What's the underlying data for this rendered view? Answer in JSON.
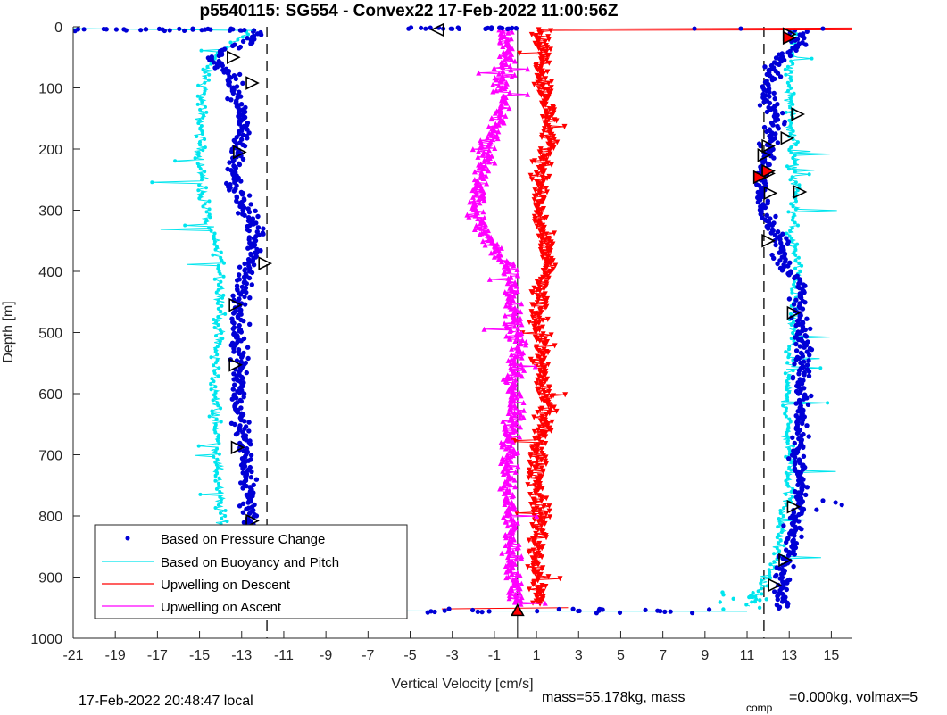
{
  "chart_data": {
    "type": "scatter",
    "title": "p5540115: SG554 - Convex22 17-Feb-2022 11:00:56Z",
    "xlabel": "Vertical Velocity [cm/s]",
    "ylabel": "Depth [m]",
    "xlim": [
      -21,
      16
    ],
    "ylim": [
      1000,
      0
    ],
    "y_reversed": true,
    "grid": false,
    "legend_position": "bottom-left",
    "x_ticks": [
      -21,
      -19,
      -17,
      -15,
      -13,
      -11,
      -9,
      -7,
      -5,
      -3,
      -1,
      1,
      3,
      5,
      7,
      9,
      11,
      13,
      15
    ],
    "y_ticks": [
      0,
      100,
      200,
      300,
      400,
      500,
      600,
      700,
      800,
      900,
      1000
    ],
    "reference_lines": {
      "dashed_x": [
        -11.8,
        11.8
      ],
      "solid_x": [
        0.1
      ]
    },
    "series": [
      {
        "name": "Based on Pressure Change",
        "color": "#0000d6",
        "marker": "dot",
        "descent": [
          [
            -12.5,
            10
          ],
          [
            -12.4,
            20
          ],
          [
            -14.5,
            50
          ],
          [
            -13.5,
            80
          ],
          [
            -13.3,
            120
          ],
          [
            -12.8,
            160
          ],
          [
            -13.2,
            200
          ],
          [
            -13.3,
            260
          ],
          [
            -12.8,
            300
          ],
          [
            -12.3,
            340
          ],
          [
            -12.6,
            390
          ],
          [
            -13.2,
            450
          ],
          [
            -13.1,
            520
          ],
          [
            -13,
            560
          ],
          [
            -13.2,
            620
          ],
          [
            -12.9,
            680
          ],
          [
            -12.7,
            740
          ],
          [
            -12.6,
            820
          ],
          [
            -12.5,
            870
          ],
          [
            -12.5,
            930
          ],
          [
            -12.6,
            955
          ]
        ],
        "ascent": [
          [
            13.5,
            30
          ],
          [
            12.3,
            60
          ],
          [
            11.9,
            110
          ],
          [
            12.4,
            160
          ],
          [
            11.9,
            210
          ],
          [
            11.7,
            260
          ],
          [
            11.8,
            300
          ],
          [
            12.6,
            350
          ],
          [
            12.6,
            380
          ],
          [
            13.5,
            420
          ],
          [
            13.4,
            470
          ],
          [
            13.7,
            530
          ],
          [
            13.6,
            580
          ],
          [
            13.6,
            640
          ],
          [
            13.3,
            700
          ],
          [
            13.7,
            760
          ],
          [
            13.2,
            810
          ],
          [
            13.1,
            850
          ],
          [
            12.7,
            890
          ],
          [
            12.8,
            920
          ]
        ]
      },
      {
        "name": "Based on Buoyancy and Pitch",
        "color": "#00e5ee",
        "marker": "line",
        "descent": [
          [
            -12.8,
            10
          ],
          [
            -14.6,
            60
          ],
          [
            -14.9,
            120
          ],
          [
            -15,
            200
          ],
          [
            -14.9,
            260
          ],
          [
            -14.6,
            320
          ],
          [
            -14,
            380
          ],
          [
            -14,
            450
          ],
          [
            -14.2,
            520
          ],
          [
            -14.3,
            580
          ],
          [
            -14.2,
            640
          ],
          [
            -14.2,
            700
          ],
          [
            -14.1,
            760
          ],
          [
            -13.9,
            820
          ],
          [
            -14.2,
            880
          ],
          [
            -14.6,
            930
          ]
        ],
        "ascent": [
          [
            13.3,
            20
          ],
          [
            13,
            80
          ],
          [
            13.1,
            150
          ],
          [
            13.2,
            220
          ],
          [
            13.3,
            280
          ],
          [
            13.1,
            340
          ],
          [
            13.4,
            400
          ],
          [
            13.2,
            460
          ],
          [
            13.1,
            520
          ],
          [
            12.9,
            580
          ],
          [
            12.9,
            640
          ],
          [
            13,
            700
          ],
          [
            13,
            760
          ],
          [
            12.6,
            820
          ],
          [
            12.4,
            870
          ],
          [
            11.8,
            910
          ],
          [
            11.2,
            940
          ]
        ]
      },
      {
        "name": "Upwelling on Descent",
        "color": "#ff0000",
        "marker": "triangle-down",
        "values": [
          [
            1.2,
            10
          ],
          [
            1.3,
            50
          ],
          [
            1.4,
            100
          ],
          [
            1.6,
            150
          ],
          [
            1.5,
            200
          ],
          [
            1.2,
            250
          ],
          [
            1.1,
            300
          ],
          [
            1.3,
            350
          ],
          [
            1.6,
            390
          ],
          [
            1.1,
            430
          ],
          [
            1.1,
            480
          ],
          [
            1.3,
            520
          ],
          [
            1.2,
            570
          ],
          [
            1.5,
            620
          ],
          [
            1.1,
            680
          ],
          [
            1,
            740
          ],
          [
            1.2,
            800
          ],
          [
            1,
            860
          ],
          [
            1.1,
            910
          ],
          [
            1.1,
            945
          ]
        ]
      },
      {
        "name": "Upwelling on Ascent",
        "color": "#ff00ff",
        "marker": "triangle-up",
        "values": [
          [
            -0.5,
            10
          ],
          [
            -0.4,
            50
          ],
          [
            -0.6,
            100
          ],
          [
            -0.8,
            150
          ],
          [
            -1.4,
            200
          ],
          [
            -1.6,
            250
          ],
          [
            -1.9,
            300
          ],
          [
            -1.5,
            340
          ],
          [
            -0.3,
            390
          ],
          [
            -0.1,
            430
          ],
          [
            0,
            480
          ],
          [
            0,
            530
          ],
          [
            -0.1,
            580
          ],
          [
            -0.1,
            640
          ],
          [
            -0.3,
            700
          ],
          [
            -0.4,
            760
          ],
          [
            -0.2,
            820
          ],
          [
            -0.1,
            880
          ],
          [
            0,
            930
          ],
          [
            0.3,
            950
          ]
        ]
      }
    ],
    "triangle_markers": {
      "descent_side": [
        [
          -13.4,
          50
        ],
        [
          -12.5,
          92
        ],
        [
          -13.1,
          205
        ],
        [
          -11.9,
          387
        ],
        [
          -13.3,
          455
        ],
        [
          -13.3,
          553
        ],
        [
          -13.2,
          688
        ],
        [
          -12.5,
          808
        ],
        [
          -12.3,
          895
        ],
        [
          -12.4,
          958
        ]
      ],
      "ascent_side": [
        [
          13,
          12
        ],
        [
          13.4,
          143
        ],
        [
          12.9,
          182
        ],
        [
          12,
          195
        ],
        [
          11.8,
          210
        ],
        [
          12,
          240
        ],
        [
          12.1,
          272
        ],
        [
          13.5,
          270
        ],
        [
          12,
          350
        ],
        [
          13.2,
          468
        ],
        [
          13.2,
          785
        ],
        [
          12.8,
          872
        ],
        [
          12.3,
          913
        ]
      ],
      "surface": [
        -3.7,
        5
      ],
      "bottom": [
        0.1,
        955
      ]
    }
  },
  "footer": {
    "local_time": "17-Feb-2022 20:48:47 local",
    "mass_text": "mass=55.178kg, mass",
    "comp_subscript": "comp",
    "tail_text": "=0.000kg, volmax=5"
  }
}
